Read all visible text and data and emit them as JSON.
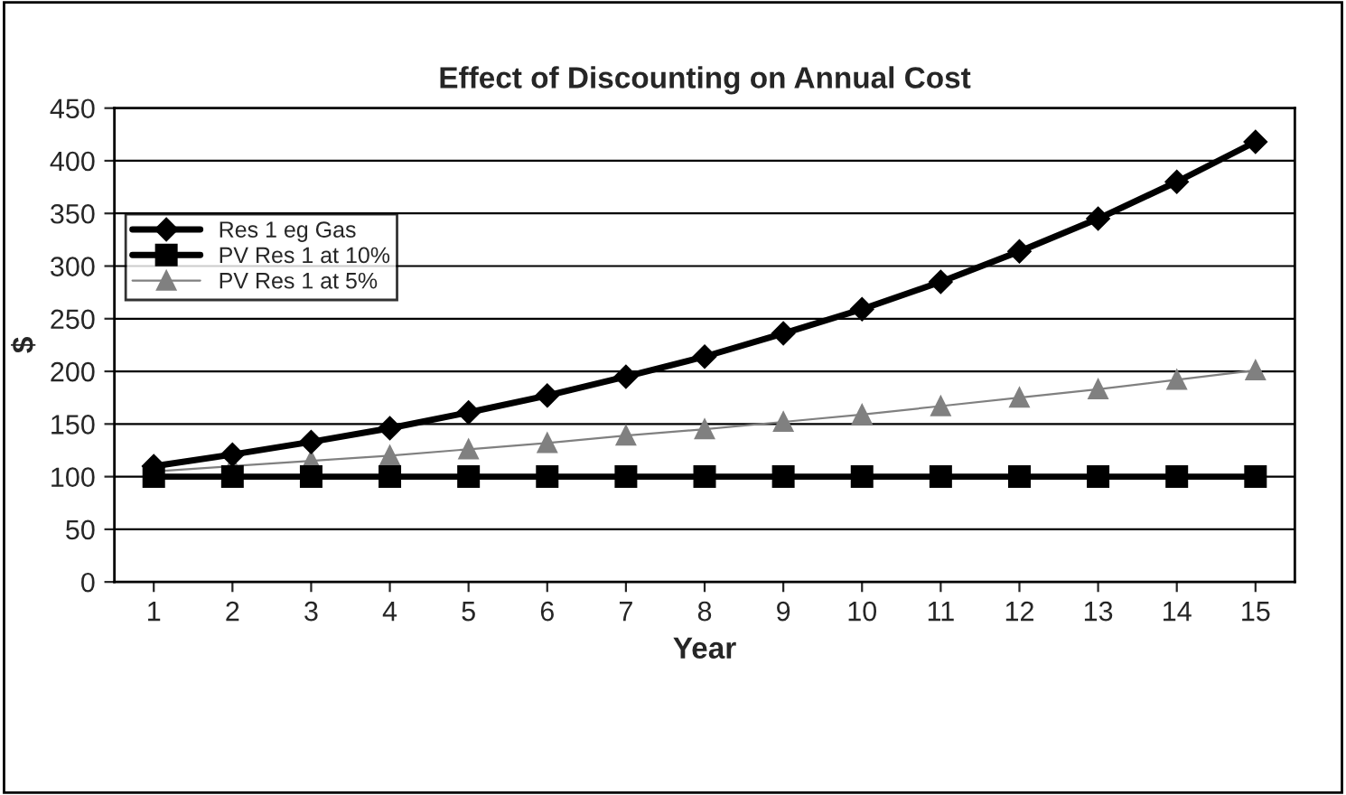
{
  "chart_data": {
    "type": "line",
    "title": "Effect of Discounting on Annual Cost",
    "xlabel": "Year",
    "ylabel": "$",
    "categories": [
      "1",
      "2",
      "3",
      "4",
      "5",
      "6",
      "7",
      "8",
      "9",
      "10",
      "11",
      "12",
      "13",
      "14",
      "15"
    ],
    "series": [
      {
        "name": "Res 1 eg Gas",
        "color": "#000000",
        "marker": "diamond",
        "values": [
          110,
          121,
          133,
          146,
          161,
          177,
          195,
          214,
          236,
          259,
          285,
          314,
          345,
          380,
          418
        ]
      },
      {
        "name": "PV Res 1 at 10%",
        "color": "#000000",
        "marker": "square",
        "values": [
          100,
          100,
          100,
          100,
          100,
          100,
          100,
          100,
          100,
          100,
          100,
          100,
          100,
          100,
          100
        ]
      },
      {
        "name": "PV Res 1 at 5%",
        "color": "#808080",
        "marker": "triangle",
        "values": [
          105,
          110,
          115,
          120,
          126,
          132,
          139,
          145,
          152,
          159,
          167,
          175,
          183,
          192,
          201
        ]
      }
    ],
    "ylim": [
      0,
      450
    ],
    "yticks": [
      0,
      50,
      100,
      150,
      200,
      250,
      300,
      350,
      400,
      450
    ],
    "grid": "y",
    "legend": "top left",
    "line_style": "solid"
  }
}
